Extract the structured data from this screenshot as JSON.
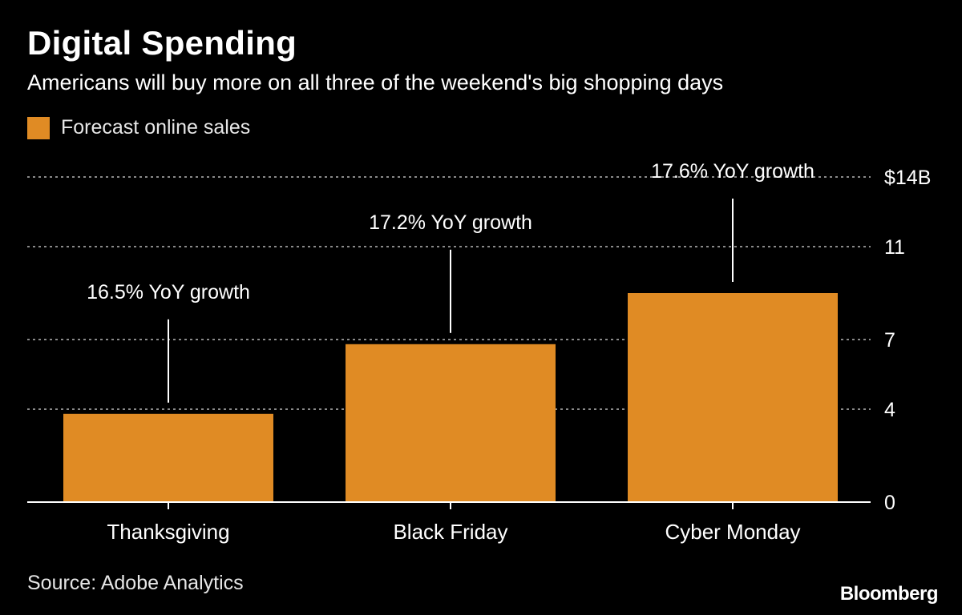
{
  "title": "Digital Spending",
  "subtitle": "Americans will buy more on all three of the weekend's big shopping days",
  "legend": {
    "label": "Forecast online sales"
  },
  "colors": {
    "bar": "#E08B24",
    "grid": "#8a8a8a",
    "axis": "#ffffff",
    "text": "#ffffff",
    "annotation_line": "#ffffff"
  },
  "source": "Source: Adobe Analytics",
  "brand": "Bloomberg",
  "chart_data": {
    "type": "bar",
    "categories": [
      "Thanksgiving",
      "Black Friday",
      "Cyber Monday"
    ],
    "series": [
      {
        "name": "Forecast online sales",
        "values": [
          3.8,
          6.8,
          9.0
        ]
      }
    ],
    "annotations": [
      "16.5% YoY growth",
      "17.2% YoY growth",
      "17.6% YoY growth"
    ],
    "ylim": [
      0,
      16
    ],
    "yticks": [
      0,
      4,
      7,
      11,
      14
    ],
    "ytick_labels": [
      "0",
      "4",
      "7",
      "11",
      "$14B"
    ],
    "y_axis_position": "right",
    "grid": true,
    "legend_position": "top-left"
  }
}
